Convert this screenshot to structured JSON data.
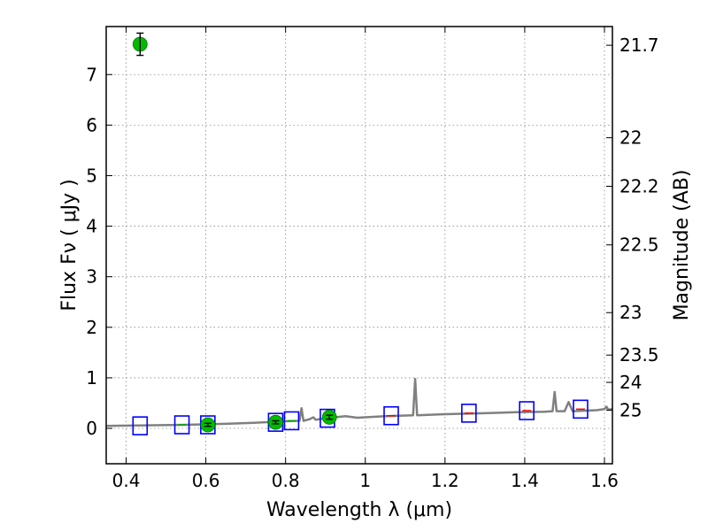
{
  "chart_data": {
    "type": "scatter",
    "xlabel": "Wavelength  λ (μm)",
    "ylabel": "Flux  Fν  ( μJy )",
    "ylabel_right": "Magnitude (AB)",
    "xlim": [
      0.35,
      1.62
    ],
    "ylim": [
      -0.7,
      7.95
    ],
    "grid": true,
    "x_ticks": [
      0.4,
      0.6,
      0.8,
      1.0,
      1.2,
      1.4,
      1.6
    ],
    "x_tick_labels": [
      "0.4",
      "0.6",
      "0.8",
      "1",
      "1.2",
      "1.4",
      "1.6"
    ],
    "y_ticks": [
      0,
      1,
      2,
      3,
      4,
      5,
      6,
      7
    ],
    "y_tick_labels": [
      "0",
      "1",
      "2",
      "3",
      "4",
      "5",
      "6",
      "7"
    ],
    "right_ticks": [
      {
        "label": "21.7",
        "flux": 7.58
      },
      {
        "label": "22",
        "flux": 5.75
      },
      {
        "label": "22.2",
        "flux": 4.79
      },
      {
        "label": "22.5",
        "flux": 3.63
      },
      {
        "label": "23",
        "flux": 2.29
      },
      {
        "label": "23.5",
        "flux": 1.45
      },
      {
        "label": "24",
        "flux": 0.91
      },
      {
        "label": "25",
        "flux": 0.36
      }
    ],
    "series": [
      {
        "type": "line",
        "color": "#808080",
        "points": [
          [
            0.35,
            0.05
          ],
          [
            0.45,
            0.06
          ],
          [
            0.55,
            0.07
          ],
          [
            0.65,
            0.09
          ],
          [
            0.72,
            0.11
          ],
          [
            0.8,
            0.14
          ],
          [
            0.835,
            0.15
          ],
          [
            0.84,
            0.4
          ],
          [
            0.845,
            0.15
          ],
          [
            0.86,
            0.18
          ],
          [
            0.87,
            0.22
          ],
          [
            0.875,
            0.17
          ],
          [
            0.9,
            0.2
          ],
          [
            0.95,
            0.24
          ],
          [
            0.98,
            0.21
          ],
          [
            1.0,
            0.22
          ],
          [
            1.05,
            0.24
          ],
          [
            1.12,
            0.26
          ],
          [
            1.125,
            0.98
          ],
          [
            1.13,
            0.26
          ],
          [
            1.2,
            0.28
          ],
          [
            1.3,
            0.3
          ],
          [
            1.38,
            0.32
          ],
          [
            1.45,
            0.33
          ],
          [
            1.47,
            0.34
          ],
          [
            1.475,
            0.72
          ],
          [
            1.48,
            0.34
          ],
          [
            1.5,
            0.34
          ],
          [
            1.51,
            0.52
          ],
          [
            1.52,
            0.34
          ],
          [
            1.58,
            0.36
          ],
          [
            1.6,
            0.38
          ],
          [
            1.605,
            0.43
          ],
          [
            1.61,
            0.37
          ],
          [
            1.62,
            0.38
          ]
        ]
      },
      {
        "type": "square-markers",
        "edge_color": "#0000ff",
        "points": [
          [
            0.435,
            0.05
          ],
          [
            0.54,
            0.07
          ],
          [
            0.605,
            0.07
          ],
          [
            0.775,
            0.12
          ],
          [
            0.815,
            0.15
          ],
          [
            0.905,
            0.2
          ],
          [
            1.065,
            0.25
          ],
          [
            1.26,
            0.3
          ],
          [
            1.405,
            0.35
          ],
          [
            1.54,
            0.38
          ]
        ]
      },
      {
        "type": "dash-markers",
        "color": "#00aa00",
        "points": [
          [
            0.54,
            0.07
          ],
          [
            0.605,
            0.07
          ],
          [
            0.775,
            0.12
          ],
          [
            0.815,
            0.15
          ]
        ]
      },
      {
        "type": "dash-markers",
        "color": "#ff0000",
        "points": [
          [
            1.065,
            0.25
          ],
          [
            1.26,
            0.3
          ],
          [
            1.405,
            0.35
          ],
          [
            1.54,
            0.38
          ]
        ]
      },
      {
        "type": "circle-errorbar",
        "color": "#00bb00",
        "points": [
          {
            "x": 0.435,
            "y": 7.6,
            "err": 0.22
          },
          {
            "x": 0.605,
            "y": 0.07,
            "err": 0.03
          },
          {
            "x": 0.775,
            "y": 0.12,
            "err": 0.03
          },
          {
            "x": 0.91,
            "y": 0.22,
            "err": 0.04
          }
        ]
      }
    ]
  }
}
